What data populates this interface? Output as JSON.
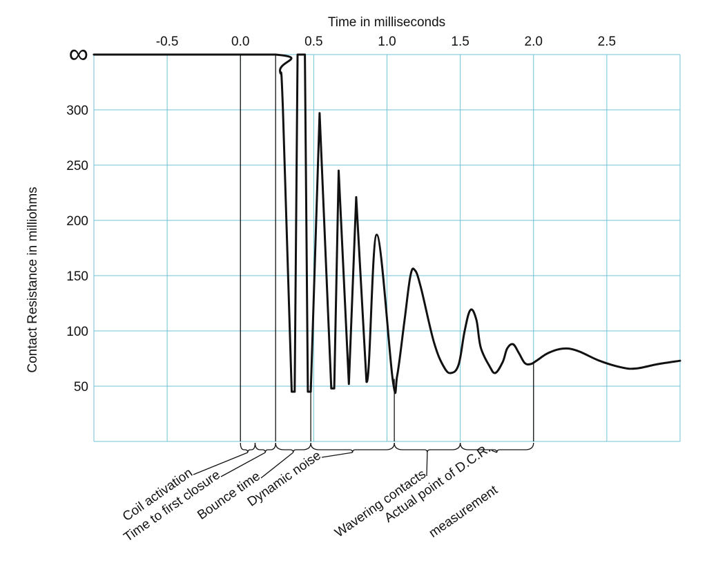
{
  "chart_data": {
    "type": "line",
    "xlabel": "Time in milliseconds",
    "ylabel": "Contact Resistance in milliohms",
    "xlim": [
      -1.0,
      3.0
    ],
    "ylim": [
      0,
      350
    ],
    "x_ticks": [
      {
        "value": -0.5,
        "label": "-0.5"
      },
      {
        "value": 0.0,
        "label": "0.0"
      },
      {
        "value": 0.5,
        "label": "0.5"
      },
      {
        "value": 1.0,
        "label": "1.0"
      },
      {
        "value": 1.5,
        "label": "1.5"
      },
      {
        "value": 2.0,
        "label": "2.0"
      },
      {
        "value": 2.5,
        "label": "2.5"
      }
    ],
    "y_ticks": [
      {
        "value": 50,
        "label": "50"
      },
      {
        "value": 100,
        "label": "100"
      },
      {
        "value": 150,
        "label": "150"
      },
      {
        "value": 200,
        "label": "200"
      },
      {
        "value": 250,
        "label": "250"
      },
      {
        "value": 300,
        "label": "300"
      },
      {
        "value": 350,
        "label": "∞"
      }
    ],
    "open_circuit_value": 350,
    "series": [
      {
        "name": "Contact resistance",
        "points": [
          [
            -1.0,
            350
          ],
          [
            0.24,
            350
          ],
          [
            0.27,
            335
          ],
          [
            0.29,
            300
          ],
          [
            0.35,
            45
          ],
          [
            0.37,
            45
          ],
          [
            0.39,
            350
          ],
          [
            0.44,
            350
          ],
          [
            0.46,
            45
          ],
          [
            0.48,
            45
          ],
          [
            0.54,
            297
          ],
          [
            0.62,
            48
          ],
          [
            0.64,
            48
          ],
          [
            0.67,
            245
          ],
          [
            0.74,
            52
          ],
          [
            0.79,
            221
          ],
          [
            0.86,
            54
          ],
          [
            0.93,
            187
          ],
          [
            1.04,
            55
          ],
          [
            1.07,
            60
          ],
          [
            1.12,
            110
          ],
          [
            1.16,
            150
          ],
          [
            1.19,
            155
          ],
          [
            1.23,
            140
          ],
          [
            1.32,
            90
          ],
          [
            1.39,
            67
          ],
          [
            1.44,
            62
          ],
          [
            1.49,
            70
          ],
          [
            1.53,
            100
          ],
          [
            1.57,
            119
          ],
          [
            1.61,
            110
          ],
          [
            1.64,
            85
          ],
          [
            1.7,
            68
          ],
          [
            1.74,
            62
          ],
          [
            1.79,
            72
          ],
          [
            1.82,
            84
          ],
          [
            1.86,
            88
          ],
          [
            1.9,
            80
          ],
          [
            1.94,
            71
          ],
          [
            1.98,
            70
          ],
          [
            2.02,
            73
          ],
          [
            2.1,
            80
          ],
          [
            2.2,
            84
          ],
          [
            2.3,
            82
          ],
          [
            2.45,
            73
          ],
          [
            2.6,
            67
          ],
          [
            2.7,
            66
          ],
          [
            2.85,
            70
          ],
          [
            3.0,
            73
          ]
        ]
      }
    ],
    "phase_markers": [
      0.0,
      0.24,
      0.48,
      1.05,
      2.0
    ],
    "phases": [
      {
        "label": "Coil activation",
        "from": 0.0,
        "to": 0.1
      },
      {
        "label": "Time to first closure",
        "from": 0.1,
        "to": 0.24
      },
      {
        "label": "Bounce time",
        "from": 0.24,
        "to": 0.48
      },
      {
        "label": "Dynamic noise",
        "from": 0.48,
        "to": 1.05
      },
      {
        "label": "Wavering contacts",
        "from": 1.05,
        "to": 1.5
      },
      {
        "label": "Actual point of D.C.R.",
        "from": 1.5,
        "to": 2.0
      },
      {
        "label": "measurement",
        "from": 1.5,
        "to": 2.0
      }
    ]
  }
}
